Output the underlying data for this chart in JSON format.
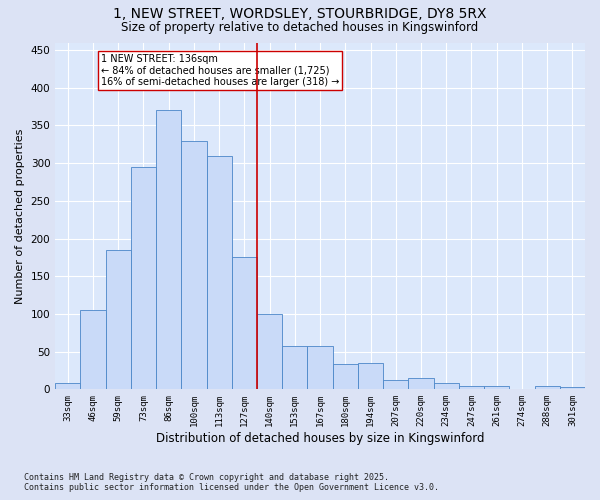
{
  "title_line1": "1, NEW STREET, WORDSLEY, STOURBRIDGE, DY8 5RX",
  "title_line2": "Size of property relative to detached houses in Kingswinford",
  "xlabel": "Distribution of detached houses by size in Kingswinford",
  "ylabel": "Number of detached properties",
  "categories": [
    "33sqm",
    "46sqm",
    "59sqm",
    "73sqm",
    "86sqm",
    "100sqm",
    "113sqm",
    "127sqm",
    "140sqm",
    "153sqm",
    "167sqm",
    "180sqm",
    "194sqm",
    "207sqm",
    "220sqm",
    "234sqm",
    "247sqm",
    "261sqm",
    "274sqm",
    "288sqm",
    "301sqm"
  ],
  "values": [
    8,
    105,
    185,
    295,
    370,
    330,
    310,
    175,
    100,
    58,
    58,
    33,
    35,
    12,
    15,
    8,
    5,
    5,
    1,
    5,
    3
  ],
  "bar_color": "#c9daf8",
  "bar_edge_color": "#4a86c8",
  "vline_x": 7.5,
  "vline_label": "1 NEW STREET: 136sqm",
  "annotation_line2": "← 84% of detached houses are smaller (1,725)",
  "annotation_line3": "16% of semi-detached houses are larger (318) →",
  "annotation_color": "#cc0000",
  "annotation_box_edge": "#cc0000",
  "ylim": [
    0,
    460
  ],
  "yticks": [
    0,
    50,
    100,
    150,
    200,
    250,
    300,
    350,
    400,
    450
  ],
  "footer_line1": "Contains HM Land Registry data © Crown copyright and database right 2025.",
  "footer_line2": "Contains public sector information licensed under the Open Government Licence v3.0.",
  "bg_color": "#dce3f5",
  "plot_bg_color": "#dce8fb"
}
